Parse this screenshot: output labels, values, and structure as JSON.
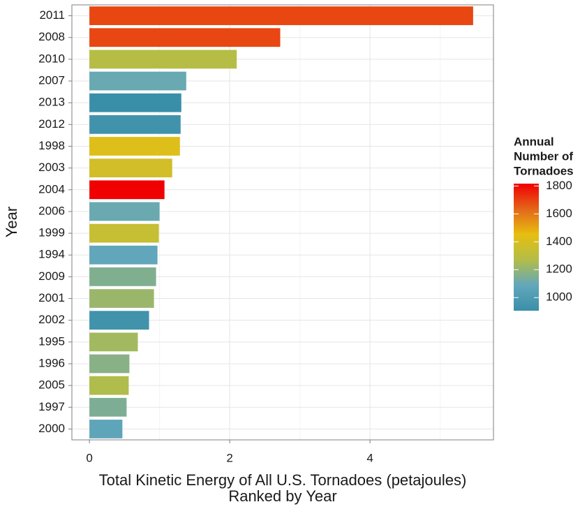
{
  "chart_data": {
    "type": "bar",
    "orientation": "horizontal",
    "x_label": [
      "Total Kinetic Energy of All U.S. Tornadoes (petajoules)",
      "Ranked by Year"
    ],
    "y_label": "Year",
    "categories": [
      "2011",
      "2008",
      "2010",
      "2007",
      "2013",
      "2012",
      "1998",
      "2003",
      "2004",
      "2006",
      "1999",
      "1994",
      "2009",
      "2001",
      "2002",
      "1995",
      "1996",
      "2005",
      "1997",
      "2000"
    ],
    "values": [
      5.47,
      2.72,
      2.1,
      1.38,
      1.31,
      1.3,
      1.29,
      1.18,
      1.07,
      1.0,
      0.99,
      0.97,
      0.95,
      0.92,
      0.85,
      0.69,
      0.57,
      0.56,
      0.53,
      0.47
    ],
    "color_values": [
      1691,
      1692,
      1282,
      1102,
      906,
      939,
      1424,
      1376,
      1817,
      1106,
      1339,
      1082,
      1156,
      1215,
      934,
      1234,
      1173,
      1264,
      1148,
      1075
    ],
    "xlim": [
      -0.25,
      5.76
    ],
    "xticks": [
      0,
      2,
      4
    ],
    "minor_xticks": [
      1,
      3,
      5
    ],
    "grid": true,
    "colorbar": {
      "title": [
        "Annual",
        "Number of",
        "Tornadoes"
      ],
      "lim": [
        906,
        1817
      ],
      "ticks": [
        1000,
        1200,
        1400,
        1600,
        1800
      ],
      "colors": [
        "#3a8fa8",
        "#62a7bb",
        "#b3bd48",
        "#e6bf10",
        "#e4661a",
        "#f00000"
      ]
    }
  }
}
